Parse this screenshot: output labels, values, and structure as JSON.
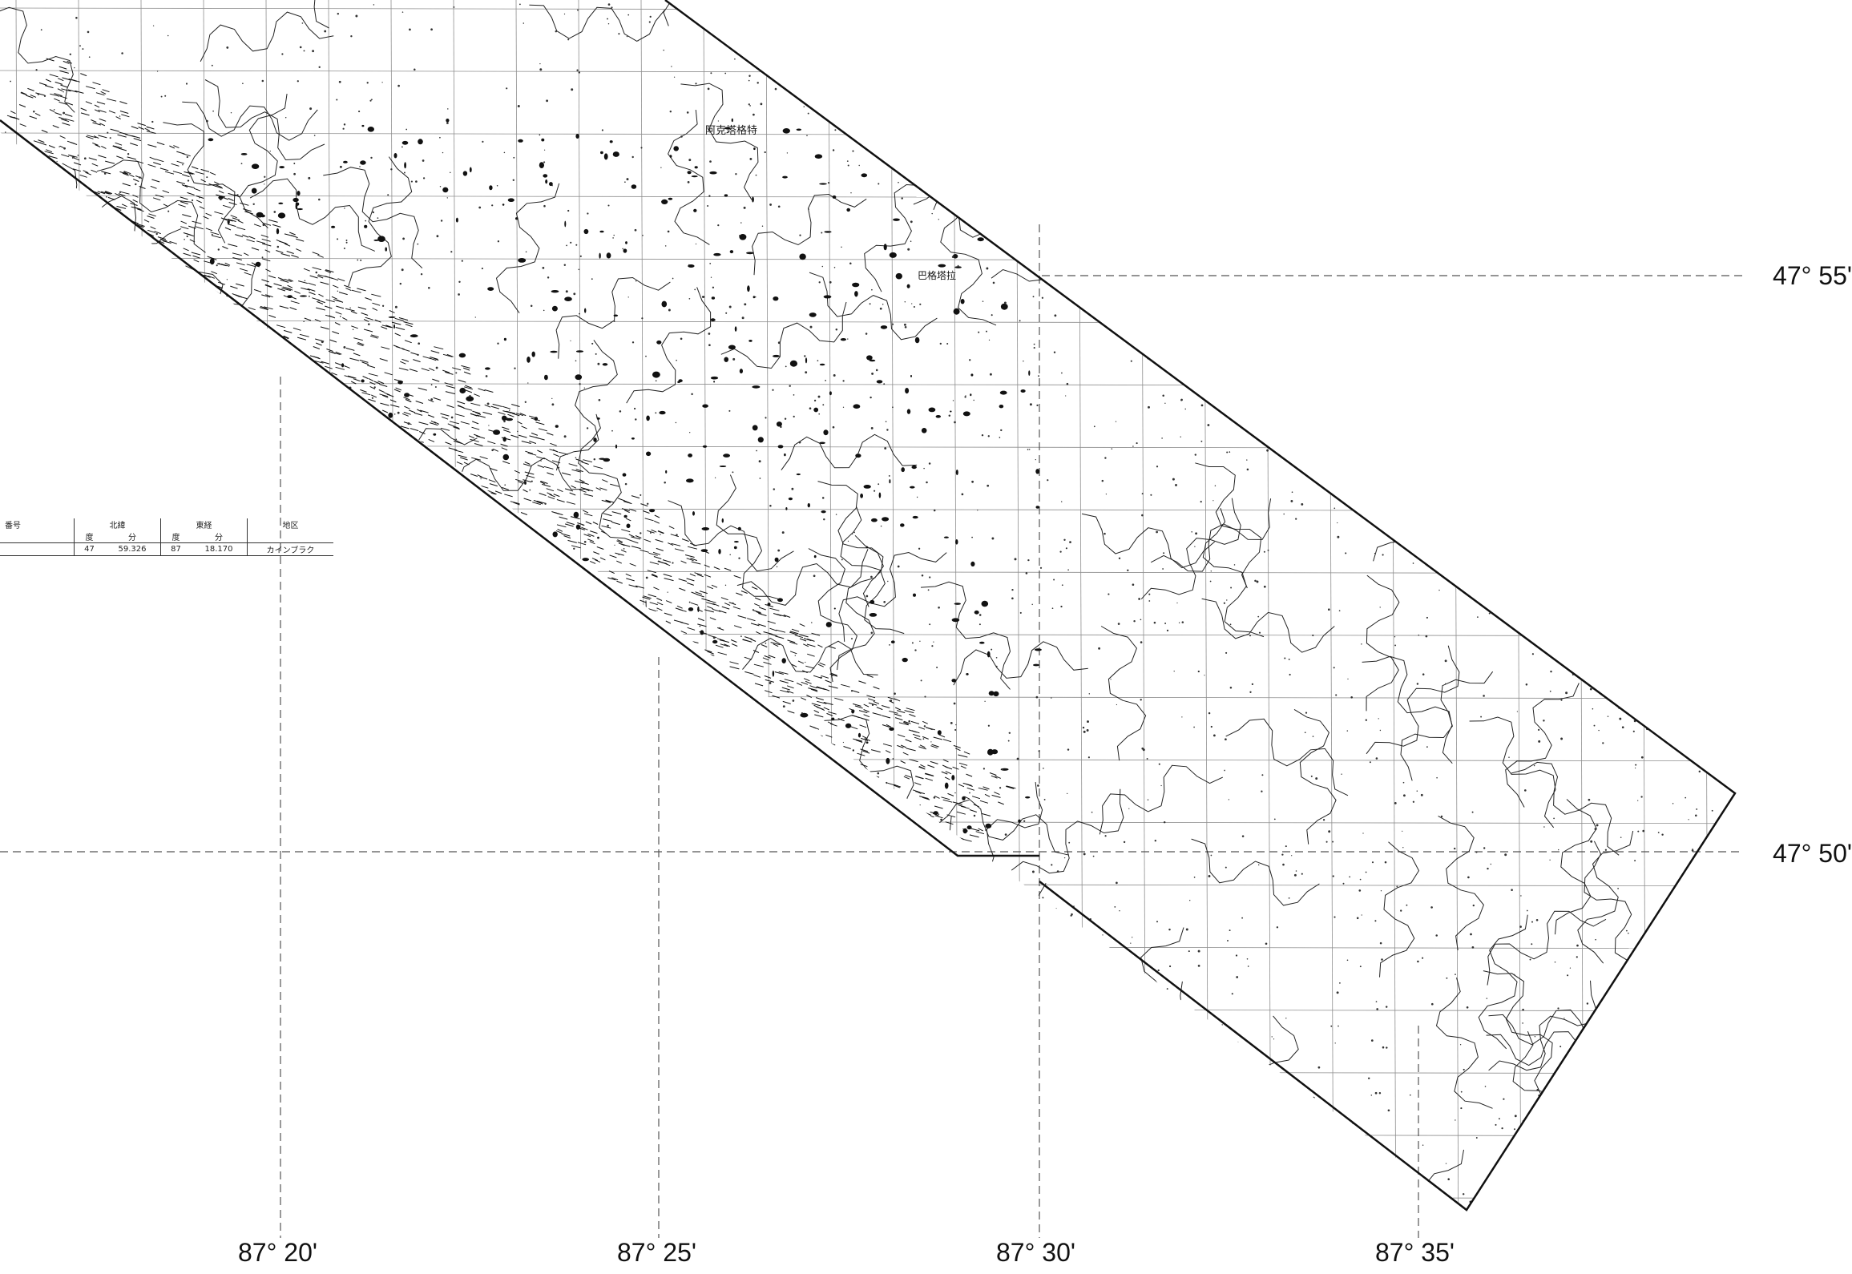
{
  "latitude_labels": [
    "47° 55'",
    "47° 50'"
  ],
  "longitude_labels": [
    "87° 20'",
    "87° 25'",
    "87° 30'",
    "87° 35'"
  ],
  "legend": {
    "headers": [
      "番号",
      "北緯",
      "東経",
      "地区"
    ],
    "subheaders": [
      "度",
      "分",
      "度",
      "分"
    ],
    "row": [
      "47",
      "59.326",
      "87",
      "18.170",
      "カインブラク"
    ]
  },
  "map_labels": {
    "place_a": "阿克塔格特",
    "place_b": "巴格塔拉"
  },
  "colors": {
    "ink": "#111111",
    "paper": "#ffffff",
    "grid": "#555555"
  }
}
